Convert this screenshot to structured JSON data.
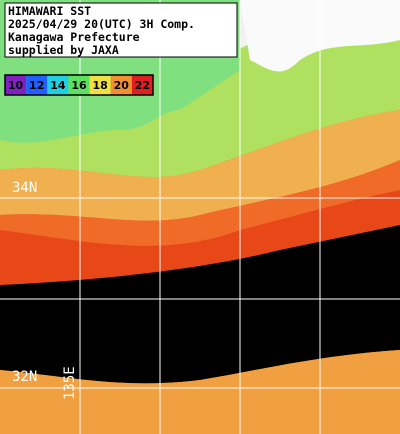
{
  "header": {
    "lines": [
      "HIMAWARI SST",
      "2025/04/29 20(UTC) 3H Comp.",
      "Kanagawa Prefecture",
      "supplied by JAXA"
    ]
  },
  "legend": {
    "items": [
      {
        "label": "10",
        "color": "#8020c0"
      },
      {
        "label": "12",
        "color": "#2060ff"
      },
      {
        "label": "14",
        "color": "#20d0e0"
      },
      {
        "label": "16",
        "color": "#60e060"
      },
      {
        "label": "18",
        "color": "#f0e040"
      },
      {
        "label": "20",
        "color": "#f09030"
      },
      {
        "label": "22",
        "color": "#e02020"
      }
    ]
  },
  "grid_labels": {
    "lat": [
      "34N",
      "32N"
    ],
    "lon": [
      "135E"
    ]
  }
}
